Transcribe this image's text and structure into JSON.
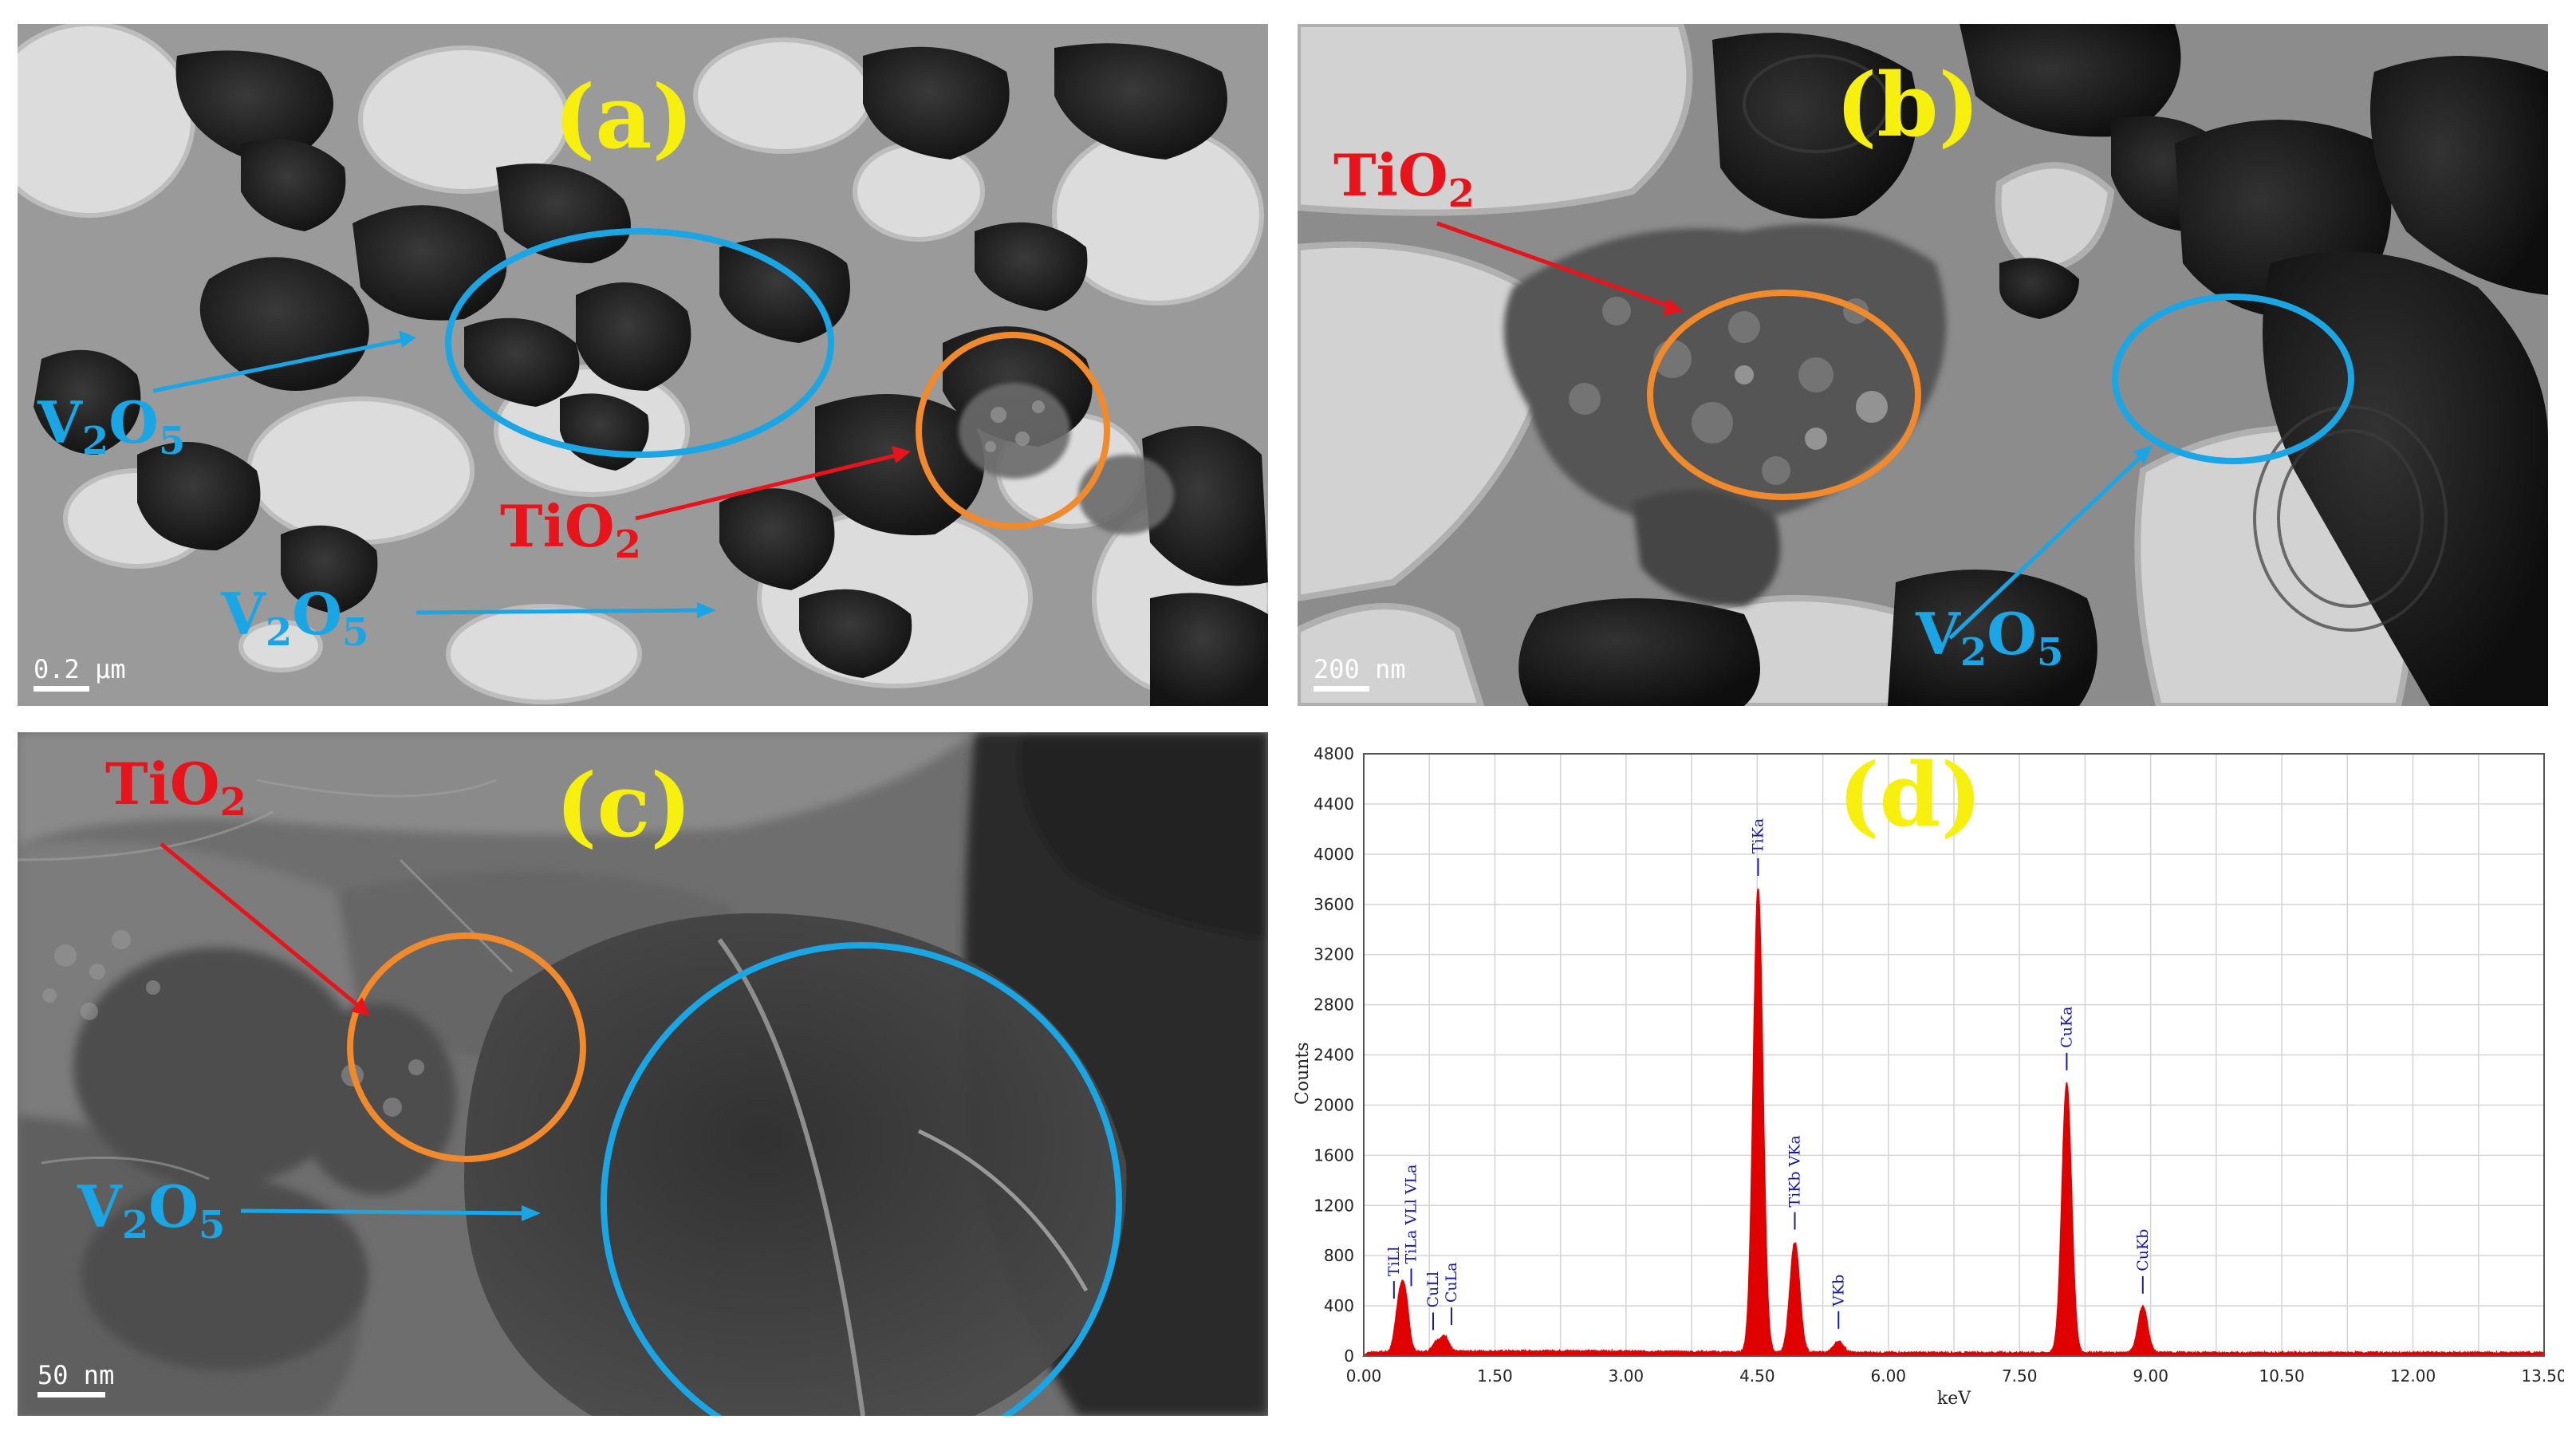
{
  "panel_a": {
    "letter": "(a)",
    "scale_bar": "0.2 μm",
    "labels": {
      "tio2": "TiO",
      "tio2_sub": "2",
      "v2o5_1": "V",
      "v2o5_1_sub1": "2",
      "v2o5_1_o": "O",
      "v2o5_1_sub2": "5"
    }
  },
  "panel_b": {
    "letter": "(b)",
    "scale_bar": "200 nm",
    "labels": {
      "tio2": "TiO",
      "tio2_sub": "2",
      "v": "V",
      "sub1": "2",
      "o": "O",
      "sub2": "5"
    }
  },
  "panel_c": {
    "letter": "(c)",
    "scale_bar": "50 nm",
    "labels": {
      "tio2": "TiO",
      "tio2_sub": "2",
      "v": "V",
      "sub1": "2",
      "o": "O",
      "sub2": "5"
    }
  },
  "panel_d": {
    "letter": "(d)"
  },
  "colors": {
    "label_yellow": "#f7f00f",
    "tio2_red": "#e8141b",
    "v2o5_blue": "#1aa5e5",
    "tio2_circle": "#f08a2c",
    "v2o5_circle": "#1aa5e5",
    "spectrum_red": "#e00000",
    "peak_label_blue": "#1a1aa0"
  },
  "chart_data": {
    "type": "line",
    "title": "(d)",
    "xlabel": "keV",
    "ylabel": "Counts",
    "xlim": [
      0,
      13.5
    ],
    "ylim": [
      0,
      4800
    ],
    "x_ticks": [
      "0.00",
      "1.50",
      "3.00",
      "4.50",
      "6.00",
      "7.50",
      "9.00",
      "10.50",
      "12.00",
      "13.50"
    ],
    "y_ticks": [
      "0",
      "400",
      "800",
      "1200",
      "1600",
      "2000",
      "2400",
      "2800",
      "3200",
      "3600",
      "4000",
      "4400",
      "4800"
    ],
    "grid": true,
    "peaks": [
      {
        "label": "TiLl",
        "x": 0.4,
        "y": 330
      },
      {
        "label": "TiLa VLl VLa",
        "x": 0.47,
        "y": 430
      },
      {
        "label": "CuLl",
        "x": 0.83,
        "y": 80
      },
      {
        "label": "CuLa",
        "x": 0.93,
        "y": 120
      },
      {
        "label": "TiKa",
        "x": 4.51,
        "y": 3700
      },
      {
        "label": "TiKb VKa",
        "x": 4.93,
        "y": 880
      },
      {
        "label": "VKb",
        "x": 5.43,
        "y": 90
      },
      {
        "label": "CuKa",
        "x": 8.04,
        "y": 2150
      },
      {
        "label": "CuKb",
        "x": 8.91,
        "y": 370
      }
    ]
  }
}
